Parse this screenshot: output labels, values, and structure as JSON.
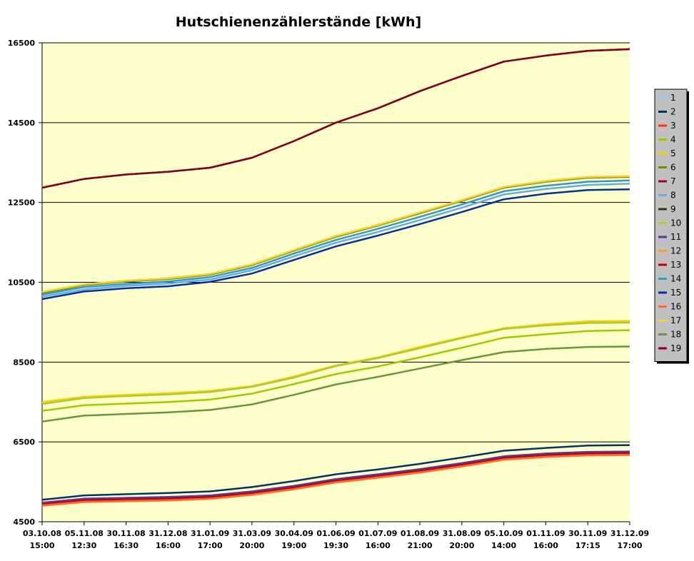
{
  "chart_data": {
    "type": "line",
    "title": "Hutschienenzählerstände [kWh]",
    "xlabel": "",
    "ylabel": "",
    "ylim": [
      4500,
      16500
    ],
    "yticks": [
      4500,
      6500,
      8500,
      10500,
      12500,
      14500,
      16500
    ],
    "grid": true,
    "legend_position": "right",
    "plot_background": "#ffffcc",
    "categories": [
      [
        "03.10.08",
        "15:00"
      ],
      [
        "05.11.08",
        "12:30"
      ],
      [
        "30.11.08",
        "16:30"
      ],
      [
        "31.12.08",
        "16:00"
      ],
      [
        "31.01.09",
        "17:00"
      ],
      [
        "31.03.09",
        "20:00"
      ],
      [
        "30.04.09",
        "19:00"
      ],
      [
        "01.06.09",
        "19:30"
      ],
      [
        "01.07.09",
        "16:00"
      ],
      [
        "01.08.09",
        "21:00"
      ],
      [
        "31.08.09",
        "20:00"
      ],
      [
        "05.10.09",
        "14:00"
      ],
      [
        "01.11.09",
        "16:00"
      ],
      [
        "30.11.09",
        "17:15"
      ],
      [
        "31.12.09",
        "17:00"
      ]
    ],
    "series": [
      {
        "name": "1",
        "color": "#99ccff",
        "values": [
          4950,
          5050,
          5080,
          5100,
          5130,
          5230,
          5370,
          5540,
          5660,
          5790,
          5940,
          6110,
          6180,
          6240,
          6260
        ]
      },
      {
        "name": "2",
        "color": "#003366",
        "values": [
          5050,
          5160,
          5190,
          5220,
          5260,
          5370,
          5520,
          5690,
          5810,
          5950,
          6110,
          6280,
          6350,
          6410,
          6420
        ]
      },
      {
        "name": "3",
        "color": "#ff3300",
        "values": [
          4920,
          5010,
          5030,
          5050,
          5090,
          5190,
          5330,
          5500,
          5620,
          5750,
          5900,
          6070,
          6140,
          6180,
          6200
        ]
      },
      {
        "name": "4",
        "color": "#99cc00",
        "values": [
          7280,
          7420,
          7460,
          7500,
          7560,
          7710,
          7950,
          8200,
          8390,
          8620,
          8860,
          9110,
          9200,
          9280,
          9300
        ]
      },
      {
        "name": "5",
        "color": "#ffcc00",
        "values": [
          7500,
          7630,
          7680,
          7720,
          7780,
          7900,
          8140,
          8420,
          8620,
          8880,
          9120,
          9350,
          9450,
          9520,
          9530
        ]
      },
      {
        "name": "6",
        "color": "#669900",
        "values": [
          10230,
          10430,
          10520,
          10580,
          10690,
          10930,
          11290,
          11640,
          11920,
          12230,
          12540,
          12870,
          13020,
          13120,
          13140
        ]
      },
      {
        "name": "7",
        "color": "#990033",
        "values": [
          12870,
          13090,
          13200,
          13270,
          13370,
          13620,
          14040,
          14500,
          14860,
          15290,
          15670,
          16030,
          16180,
          16300,
          16340
        ]
      },
      {
        "name": "8",
        "color": "#66aaee",
        "values": [
          10140,
          10320,
          10410,
          10470,
          10570,
          10800,
          11150,
          11490,
          11760,
          12060,
          12370,
          12700,
          12840,
          12940,
          12970
        ]
      },
      {
        "name": "9",
        "color": "#333300",
        "values": [
          4960,
          5060,
          5080,
          5100,
          5140,
          5240,
          5380,
          5550,
          5670,
          5800,
          5950,
          6120,
          6190,
          6230,
          6240
        ]
      },
      {
        "name": "10",
        "color": "#aacc33",
        "values": [
          7450,
          7600,
          7650,
          7690,
          7750,
          7880,
          8110,
          8400,
          8600,
          8850,
          9100,
          9330,
          9420,
          9480,
          9490
        ]
      },
      {
        "name": "11",
        "color": "#663399",
        "values": [
          4980,
          5080,
          5100,
          5120,
          5160,
          5260,
          5400,
          5570,
          5690,
          5820,
          5970,
          6140,
          6210,
          6250,
          6260
        ]
      },
      {
        "name": "12",
        "color": "#ff9933",
        "values": [
          4900,
          4990,
          5010,
          5030,
          5070,
          5170,
          5310,
          5480,
          5600,
          5730,
          5880,
          6050,
          6120,
          6160,
          6170
        ]
      },
      {
        "name": "13",
        "color": "#cc0000",
        "values": [
          4940,
          5030,
          5050,
          5070,
          5110,
          5210,
          5350,
          5520,
          5640,
          5770,
          5920,
          6090,
          6160,
          6200,
          6210
        ]
      },
      {
        "name": "14",
        "color": "#3399cc",
        "values": [
          10190,
          10380,
          10460,
          10520,
          10630,
          10860,
          11220,
          11560,
          11840,
          12140,
          12450,
          12780,
          12920,
          13020,
          13050
        ]
      },
      {
        "name": "15",
        "color": "#003399",
        "values": [
          10080,
          10270,
          10350,
          10400,
          10510,
          10720,
          11060,
          11400,
          11670,
          11960,
          12260,
          12580,
          12720,
          12810,
          12830
        ]
      },
      {
        "name": "16",
        "color": "#ff6633",
        "values": [
          4910,
          5000,
          5020,
          5040,
          5080,
          5180,
          5320,
          5490,
          5610,
          5740,
          5890,
          6060,
          6130,
          6170,
          6180
        ]
      },
      {
        "name": "17",
        "color": "#ffcc33",
        "values": [
          10260,
          10450,
          10540,
          10600,
          10710,
          10950,
          11310,
          11660,
          11940,
          12250,
          12560,
          12890,
          13040,
          13140,
          13160
        ]
      },
      {
        "name": "18",
        "color": "#669933",
        "values": [
          7010,
          7160,
          7200,
          7240,
          7300,
          7440,
          7680,
          7940,
          8130,
          8340,
          8550,
          8750,
          8830,
          8880,
          8890
        ]
      },
      {
        "name": "19",
        "color": "#800020",
        "values": [
          12870,
          13090,
          13200,
          13270,
          13370,
          13620,
          14040,
          14500,
          14860,
          15290,
          15670,
          16030,
          16180,
          16300,
          16340
        ]
      }
    ]
  }
}
